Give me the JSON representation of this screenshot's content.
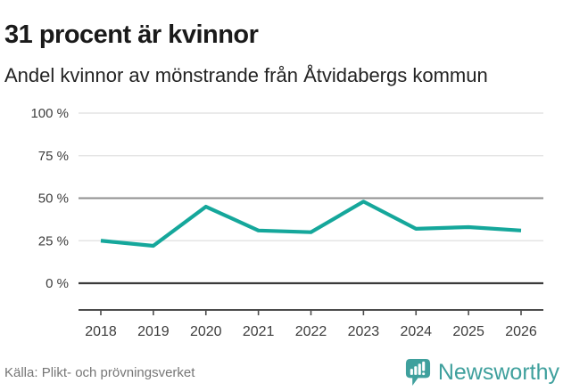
{
  "header": {
    "title": "31 procent är kvinnor",
    "subtitle": "Andel kvinnor av mönstrande från Åtvidabergs kommun"
  },
  "chart_data": {
    "type": "line",
    "title": "31 procent är kvinnor",
    "subtitle": "Andel kvinnor av mönstrande från Åtvidabergs kommun",
    "x": [
      2018,
      2019,
      2020,
      2021,
      2022,
      2023,
      2024,
      2025,
      2026
    ],
    "values": [
      25,
      22,
      45,
      31,
      30,
      48,
      32,
      33,
      31
    ],
    "unit": "%",
    "ylim": [
      0,
      100
    ],
    "yticks": [
      0,
      25,
      50,
      75,
      100
    ],
    "ytick_labels": [
      "0 %",
      "25 %",
      "50 %",
      "75 %",
      "100 %"
    ],
    "grid": "on",
    "legend": "none",
    "emphasized_gridline": 50,
    "zero_line": 0,
    "colors": {
      "line": "#15a79b",
      "grid_light": "#e4e4e4",
      "grid_mid": "#8f8f8f",
      "zero_line": "#3a3a3a",
      "axis": "#4c4c4c",
      "tick_text": "#3d3d3d"
    }
  },
  "footer": {
    "source": "Källa: Plikt- och prövningsverket",
    "brand_name": "Newsworthy",
    "brand_color": "#3fa09d"
  },
  "icons": {
    "brand_logo": "bar-chart-speech-bubble-icon"
  }
}
